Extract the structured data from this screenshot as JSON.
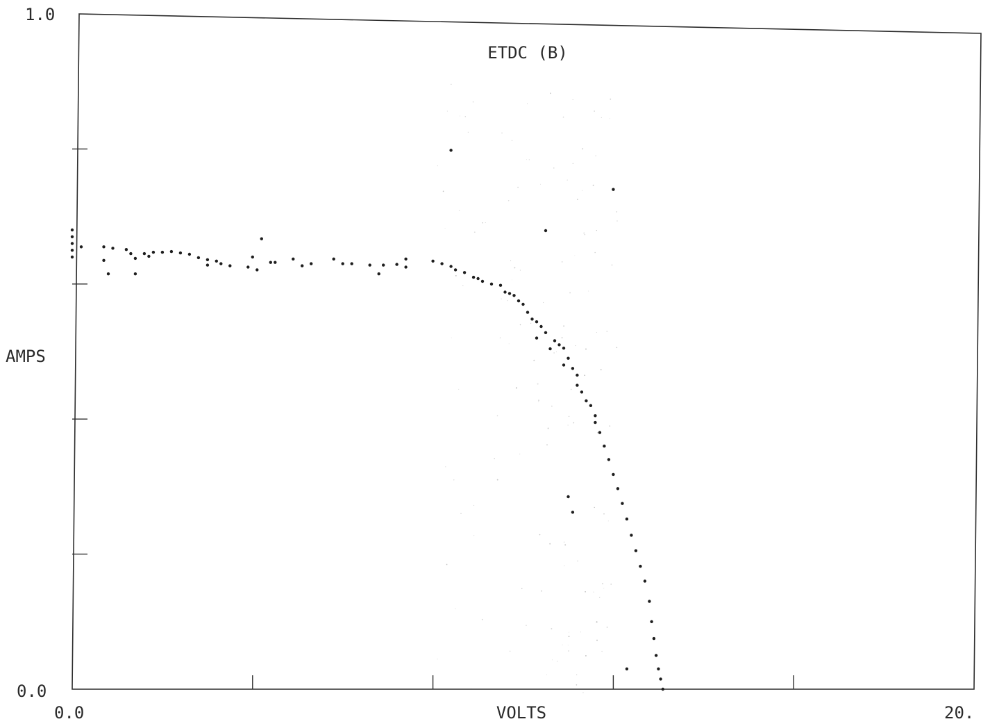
{
  "chart_data": {
    "type": "scatter",
    "title": "ETDC (B)",
    "xlabel": "VOLTS",
    "ylabel": "AMPS",
    "xlim": [
      0,
      20
    ],
    "ylim": [
      0,
      1
    ],
    "x_tick_labels": {
      "min": "0.0",
      "max": "20."
    },
    "y_tick_labels": {
      "min": "0.0",
      "max": "1.0"
    },
    "x_ticks": [
      0,
      4,
      8,
      12,
      16,
      20
    ],
    "y_ticks": [
      0,
      0.2,
      0.4,
      0.6,
      0.8,
      1.0
    ],
    "grid": false,
    "legend": "none",
    "marker_color": "#1e1e1e",
    "series": [
      {
        "points": [
          [
            0.0,
            0.64
          ],
          [
            0.0,
            0.65
          ],
          [
            0.0,
            0.66
          ],
          [
            0.0,
            0.67
          ],
          [
            0.0,
            0.68
          ],
          [
            0.2,
            0.655
          ],
          [
            0.7,
            0.655
          ],
          [
            0.7,
            0.635
          ],
          [
            0.8,
            0.615
          ],
          [
            0.9,
            0.653
          ],
          [
            1.2,
            0.651
          ],
          [
            1.3,
            0.645
          ],
          [
            1.4,
            0.638
          ],
          [
            1.4,
            0.615
          ],
          [
            1.6,
            0.645
          ],
          [
            1.7,
            0.641
          ],
          [
            1.8,
            0.647
          ],
          [
            2.0,
            0.647
          ],
          [
            2.2,
            0.648
          ],
          [
            2.4,
            0.646
          ],
          [
            2.6,
            0.644
          ],
          [
            2.8,
            0.639
          ],
          [
            3.0,
            0.636
          ],
          [
            3.0,
            0.628
          ],
          [
            3.2,
            0.634
          ],
          [
            3.3,
            0.63
          ],
          [
            3.5,
            0.627
          ],
          [
            3.9,
            0.625
          ],
          [
            4.0,
            0.64
          ],
          [
            4.1,
            0.621
          ],
          [
            4.2,
            0.667
          ],
          [
            4.4,
            0.632
          ],
          [
            4.5,
            0.632
          ],
          [
            4.9,
            0.637
          ],
          [
            5.1,
            0.627
          ],
          [
            5.3,
            0.63
          ],
          [
            5.8,
            0.637
          ],
          [
            6.0,
            0.63
          ],
          [
            6.2,
            0.63
          ],
          [
            6.6,
            0.628
          ],
          [
            6.8,
            0.615
          ],
          [
            6.9,
            0.628
          ],
          [
            7.2,
            0.629
          ],
          [
            7.4,
            0.637
          ],
          [
            7.4,
            0.625
          ],
          [
            8.0,
            0.634
          ],
          [
            8.2,
            0.63
          ],
          [
            8.4,
            0.626
          ],
          [
            8.5,
            0.621
          ],
          [
            8.7,
            0.617
          ],
          [
            8.9,
            0.61
          ],
          [
            9.0,
            0.608
          ],
          [
            9.1,
            0.604
          ],
          [
            9.3,
            0.6
          ],
          [
            9.5,
            0.598
          ],
          [
            9.6,
            0.588
          ],
          [
            9.7,
            0.586
          ],
          [
            9.8,
            0.583
          ],
          [
            9.9,
            0.575
          ],
          [
            10.0,
            0.57
          ],
          [
            10.1,
            0.558
          ],
          [
            10.2,
            0.548
          ],
          [
            10.3,
            0.544
          ],
          [
            10.3,
            0.52
          ],
          [
            10.4,
            0.537
          ],
          [
            10.5,
            0.528
          ],
          [
            10.6,
            0.504
          ],
          [
            10.7,
            0.516
          ],
          [
            10.8,
            0.51
          ],
          [
            10.9,
            0.505
          ],
          [
            10.9,
            0.48
          ],
          [
            11.0,
            0.49
          ],
          [
            11.1,
            0.475
          ],
          [
            11.2,
            0.465
          ],
          [
            11.2,
            0.45
          ],
          [
            11.3,
            0.44
          ],
          [
            11.4,
            0.427
          ],
          [
            11.5,
            0.42
          ],
          [
            11.6,
            0.405
          ],
          [
            11.6,
            0.395
          ],
          [
            11.7,
            0.38
          ],
          [
            11.8,
            0.36
          ],
          [
            11.9,
            0.34
          ],
          [
            12.0,
            0.318
          ],
          [
            12.1,
            0.297
          ],
          [
            12.2,
            0.275
          ],
          [
            12.3,
            0.252
          ],
          [
            12.4,
            0.228
          ],
          [
            12.5,
            0.205
          ],
          [
            12.6,
            0.182
          ],
          [
            12.7,
            0.16
          ],
          [
            12.8,
            0.13
          ],
          [
            12.85,
            0.1
          ],
          [
            12.9,
            0.075
          ],
          [
            12.95,
            0.05
          ],
          [
            13.0,
            0.03
          ],
          [
            13.05,
            0.015
          ],
          [
            13.1,
            0.0
          ],
          [
            8.4,
            0.798
          ],
          [
            10.5,
            0.679
          ],
          [
            12.0,
            0.74
          ],
          [
            12.3,
            0.03
          ],
          [
            11.1,
            0.262
          ],
          [
            11.0,
            0.285
          ]
        ]
      }
    ]
  }
}
